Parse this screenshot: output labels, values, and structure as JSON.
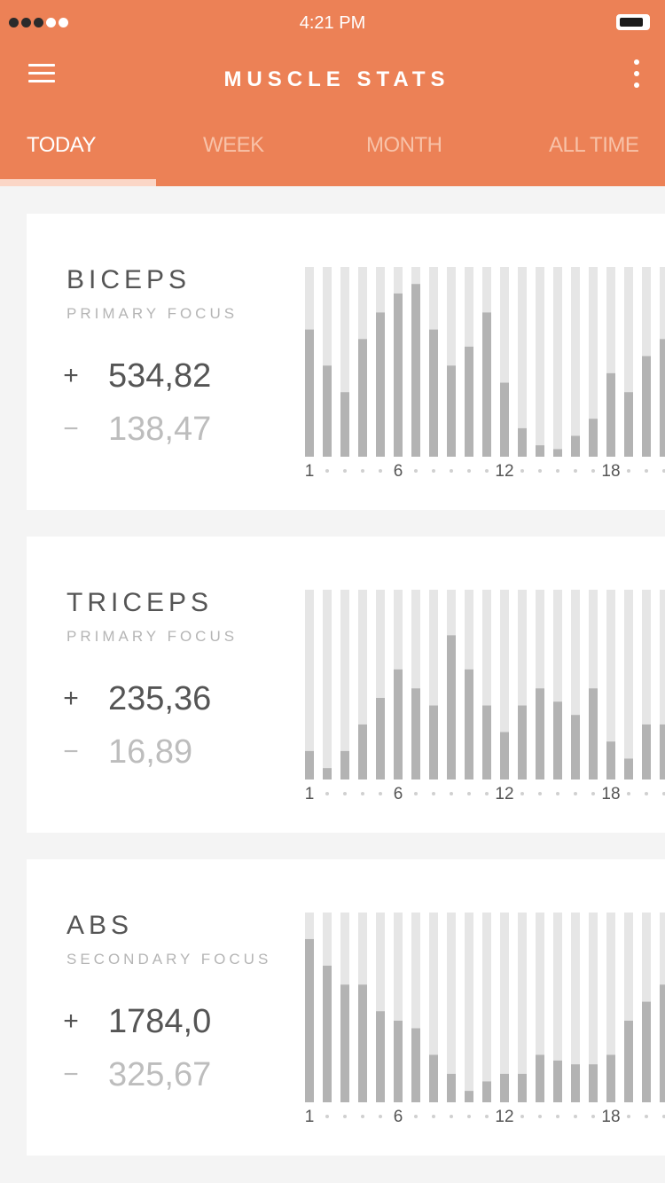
{
  "status_bar": {
    "time": "4:21 PM"
  },
  "header": {
    "title": "MUSCLE STATS"
  },
  "tabs": [
    {
      "label": "TODAY",
      "active": true
    },
    {
      "label": "WEEK",
      "active": false
    },
    {
      "label": "MONTH",
      "active": false
    },
    {
      "label": "ALL TIME",
      "active": false
    }
  ],
  "colors": {
    "header_bg": "#ec8156",
    "bar_track": "#e6e6e6",
    "bar_fill": "#b3b3b3"
  },
  "cards": [
    {
      "title": "BICEPS",
      "subtitle": "PRIMARY FOCUS",
      "plus_sign": "+",
      "plus_value": "534,82",
      "minus_sign": "−",
      "minus_value": "138,47",
      "chart_data": {
        "type": "bar",
        "categories": [
          1,
          2,
          3,
          4,
          5,
          6,
          7,
          8,
          9,
          10,
          11,
          12,
          13,
          14,
          15,
          16,
          17,
          18,
          19,
          20,
          21
        ],
        "tick_labels": [
          "1",
          "6",
          "12",
          "18"
        ],
        "values": [
          0.67,
          0.48,
          0.34,
          0.62,
          0.76,
          0.86,
          0.91,
          0.67,
          0.48,
          0.58,
          0.76,
          0.39,
          0.15,
          0.06,
          0.04,
          0.11,
          0.2,
          0.44,
          0.34,
          0.53,
          0.62
        ],
        "ylim": [
          0,
          1
        ]
      }
    },
    {
      "title": "TRICEPS",
      "subtitle": "PRIMARY FOCUS",
      "plus_sign": "+",
      "plus_value": "235,36",
      "minus_sign": "−",
      "minus_value": "16,89",
      "chart_data": {
        "type": "bar",
        "categories": [
          1,
          2,
          3,
          4,
          5,
          6,
          7,
          8,
          9,
          10,
          11,
          12,
          13,
          14,
          15,
          16,
          17,
          18,
          19,
          20,
          21
        ],
        "tick_labels": [
          "1",
          "6",
          "12",
          "18"
        ],
        "values": [
          0.15,
          0.06,
          0.15,
          0.29,
          0.43,
          0.58,
          0.48,
          0.39,
          0.76,
          0.58,
          0.39,
          0.25,
          0.39,
          0.48,
          0.41,
          0.34,
          0.48,
          0.2,
          0.11,
          0.29,
          0.29
        ],
        "ylim": [
          0,
          1
        ]
      }
    },
    {
      "title": "ABS",
      "subtitle": "SECONDARY FOCUS",
      "plus_sign": "+",
      "plus_value": "1784,0",
      "minus_sign": "−",
      "minus_value": "325,67",
      "chart_data": {
        "type": "bar",
        "categories": [
          1,
          2,
          3,
          4,
          5,
          6,
          7,
          8,
          9,
          10,
          11,
          12,
          13,
          14,
          15,
          16,
          17,
          18,
          19,
          20,
          21
        ],
        "tick_labels": [
          "1",
          "6",
          "12",
          "18"
        ],
        "values": [
          0.86,
          0.72,
          0.62,
          0.62,
          0.48,
          0.43,
          0.39,
          0.25,
          0.15,
          0.06,
          0.11,
          0.15,
          0.15,
          0.25,
          0.22,
          0.2,
          0.2,
          0.25,
          0.43,
          0.53,
          0.62
        ],
        "ylim": [
          0,
          1
        ]
      }
    }
  ]
}
